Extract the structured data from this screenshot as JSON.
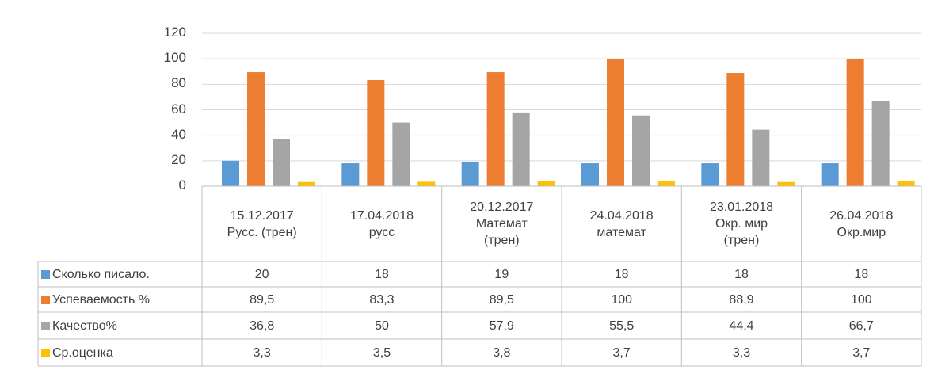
{
  "chart_data": {
    "type": "bar",
    "categories": [
      "15.12.2017\nРусс. (трен)",
      "17.04.2018\nрусс",
      "20.12.2017\nМатемат\n(трен)",
      "24.04.2018\nматемат",
      "23.01.2018\nОкр. мир\n(трен)",
      "26.04.2018\nОкр.мир"
    ],
    "series": [
      {
        "name": "Сколько писало.",
        "color": "#5b9bd5",
        "values": [
          20,
          18,
          19,
          18,
          18,
          18
        ],
        "value_labels": [
          "20",
          "18",
          "19",
          "18",
          "18",
          "18"
        ]
      },
      {
        "name": "Успеваемость %",
        "color": "#ed7d31",
        "values": [
          89.5,
          83.3,
          89.5,
          100,
          88.9,
          100
        ],
        "value_labels": [
          "89,5",
          "83,3",
          "89,5",
          "100",
          "88,9",
          "100"
        ]
      },
      {
        "name": "Качество%",
        "color": "#a5a5a5",
        "values": [
          36.8,
          50,
          57.9,
          55.5,
          44.4,
          66.7
        ],
        "value_labels": [
          "36,8",
          "50",
          "57,9",
          "55,5",
          "44,4",
          "66,7"
        ]
      },
      {
        "name": "Ср.оценка",
        "color": "#ffc000",
        "values": [
          3.3,
          3.5,
          3.8,
          3.7,
          3.3,
          3.7
        ],
        "value_labels": [
          "3,3",
          "3,5",
          "3,8",
          "3,7",
          "3,3",
          "3,7"
        ]
      }
    ],
    "ylim": [
      0,
      120
    ],
    "yticks": [
      0,
      20,
      40,
      60,
      80,
      100,
      120
    ],
    "grid": true,
    "data_table": true
  }
}
